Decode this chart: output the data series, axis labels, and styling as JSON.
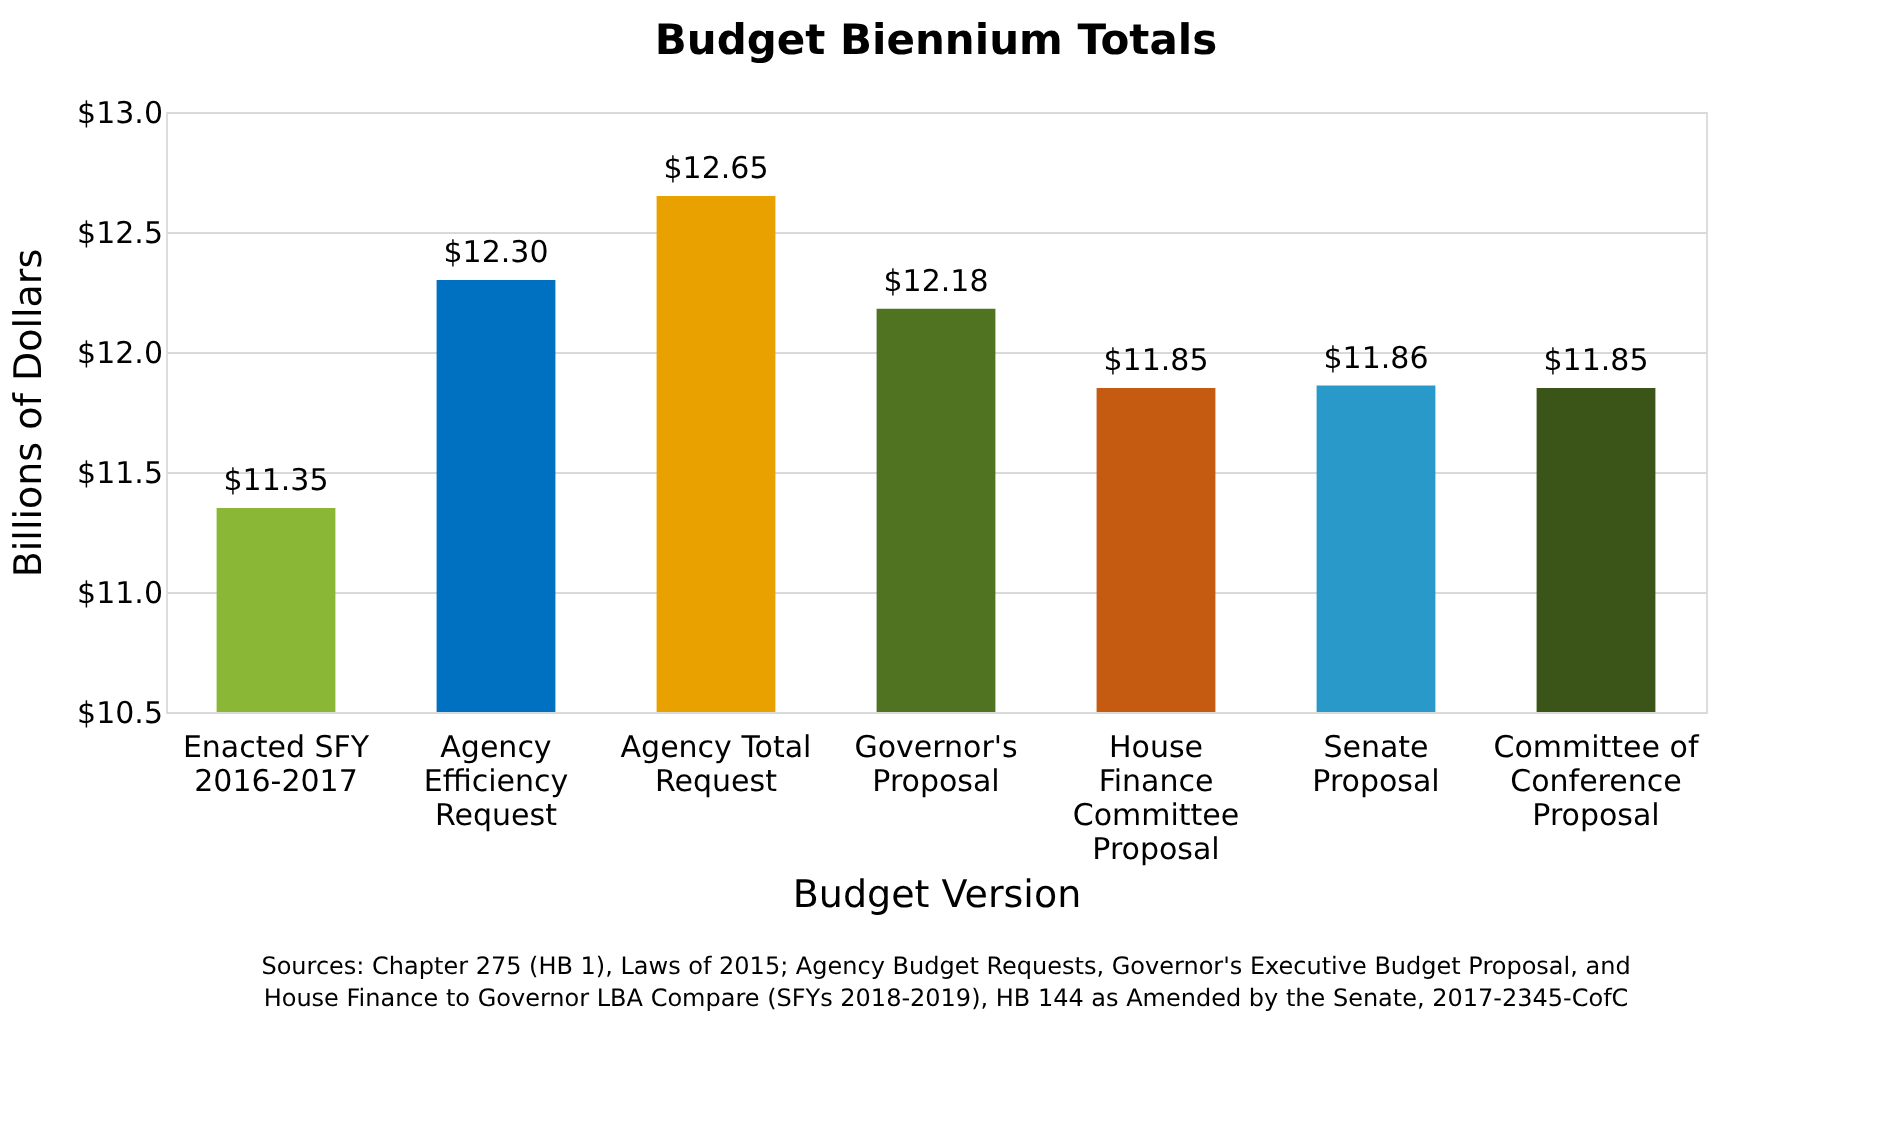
{
  "chart_data": {
    "type": "bar",
    "title": "Budget Biennium Totals",
    "xlabel": "Budget Version",
    "ylabel": "Billions of Dollars",
    "categories": [
      "Enacted SFY 2016-2017",
      "Agency Efficiency Request",
      "Agency Total Request",
      "Governor's Proposal",
      "House Finance Committee Proposal",
      "Senate Proposal",
      "Committee of Conference Proposal"
    ],
    "values": [
      11.35,
      12.3,
      12.65,
      12.18,
      11.85,
      11.86,
      11.85
    ],
    "colors": [
      "#8bb737",
      "#0070c0",
      "#e9a100",
      "#4f7321",
      "#c55a11",
      "#2999c9",
      "#3b5518"
    ],
    "value_labels": [
      "$11.35",
      "$12.30",
      "$12.65",
      "$12.18",
      "$11.85",
      "$11.86",
      "$11.85"
    ],
    "ylim": [
      10.5,
      13.0
    ],
    "yticks": [
      {
        "value": 10.5,
        "label": "$10.5"
      },
      {
        "value": 11.0,
        "label": "$11.0"
      },
      {
        "value": 11.5,
        "label": "$11.5"
      },
      {
        "value": 12.0,
        "label": "$12.0"
      },
      {
        "value": 12.5,
        "label": "$12.5"
      },
      {
        "value": 13.0,
        "label": "$13.0"
      }
    ],
    "grid": "y",
    "legend": false,
    "annotations": [
      "Sources: Chapter 275 (HB 1), Laws of 2015; Agency Budget Requests, Governor's Executive Budget Proposal, and House Finance to Governor LBA Compare (SFYs 2018-2019), HB 144 as Amended by the Senate, 2017-2345-CofC"
    ]
  }
}
